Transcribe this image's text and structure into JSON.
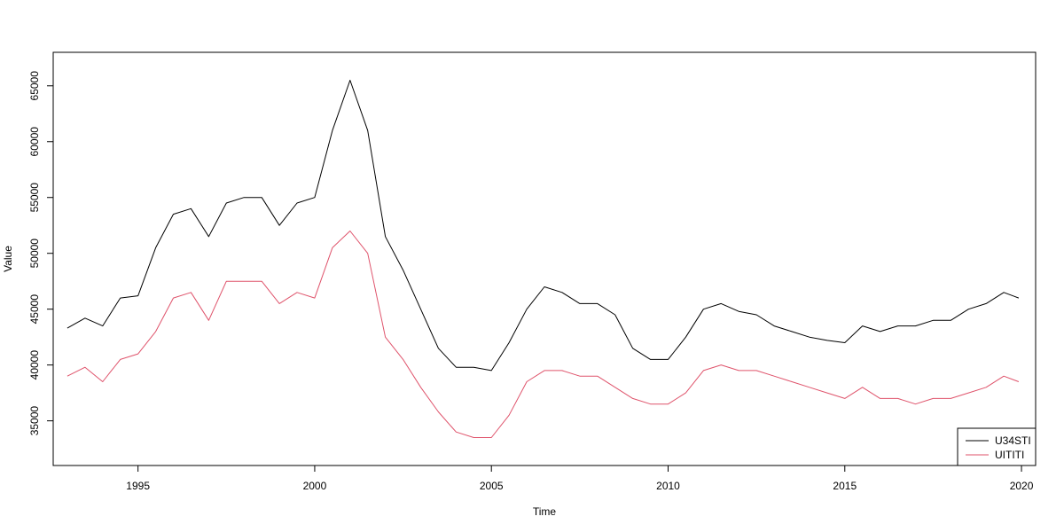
{
  "chart_data": {
    "type": "line",
    "title": "",
    "xlabel": "Time",
    "ylabel": "Value",
    "xlim": [
      1992.6,
      2020.4
    ],
    "ylim": [
      31000,
      68000
    ],
    "x_ticks": [
      1995,
      2000,
      2005,
      2010,
      2015,
      2020
    ],
    "x_tick_labels": [
      "1995",
      "2000",
      "2005",
      "2010",
      "2015",
      "2020"
    ],
    "y_ticks": [
      35000,
      40000,
      45000,
      50000,
      55000,
      60000,
      65000
    ],
    "y_tick_labels": [
      "35000",
      "40000",
      "45000",
      "50000",
      "55000",
      "60000",
      "65000"
    ],
    "grid": false,
    "legend_position": "bottom-right",
    "series": [
      {
        "name": "U34STI",
        "color": "#000000",
        "x": [
          1993.0,
          1993.5,
          1994.0,
          1994.5,
          1995.0,
          1995.5,
          1996.0,
          1996.5,
          1997.0,
          1997.5,
          1998.0,
          1998.5,
          1999.0,
          1999.5,
          2000.0,
          2000.5,
          2001.0,
          2001.5,
          2002.0,
          2002.5,
          2003.0,
          2003.5,
          2004.0,
          2004.5,
          2005.0,
          2005.5,
          2006.0,
          2006.5,
          2007.0,
          2007.5,
          2008.0,
          2008.5,
          2009.0,
          2009.5,
          2010.0,
          2010.5,
          2011.0,
          2011.5,
          2012.0,
          2012.5,
          2013.0,
          2013.5,
          2014.0,
          2014.5,
          2015.0,
          2015.5,
          2016.0,
          2016.5,
          2017.0,
          2017.5,
          2018.0,
          2018.5,
          2019.0,
          2019.5,
          2019.92
        ],
        "values": [
          43300,
          44200,
          43500,
          46000,
          46200,
          50500,
          53500,
          54000,
          51500,
          54500,
          55000,
          55000,
          52500,
          54500,
          55000,
          61000,
          65500,
          61000,
          51500,
          48500,
          45000,
          41500,
          39800,
          39800,
          39500,
          42000,
          45000,
          47000,
          46500,
          45500,
          45500,
          44500,
          41500,
          40500,
          40500,
          42500,
          45000,
          45500,
          44800,
          44500,
          43500,
          43000,
          42500,
          42200,
          42000,
          43500,
          43000,
          43500,
          43500,
          44000,
          44000,
          45000,
          45500,
          46500,
          46000
        ]
      },
      {
        "name": "UITITI",
        "color": "#DF536B",
        "x": [
          1993.0,
          1993.5,
          1994.0,
          1994.5,
          1995.0,
          1995.5,
          1996.0,
          1996.5,
          1997.0,
          1997.5,
          1998.0,
          1998.5,
          1999.0,
          1999.5,
          2000.0,
          2000.5,
          2001.0,
          2001.5,
          2002.0,
          2002.5,
          2003.0,
          2003.5,
          2004.0,
          2004.5,
          2005.0,
          2005.5,
          2006.0,
          2006.5,
          2007.0,
          2007.5,
          2008.0,
          2008.5,
          2009.0,
          2009.5,
          2010.0,
          2010.5,
          2011.0,
          2011.5,
          2012.0,
          2012.5,
          2013.0,
          2013.5,
          2014.0,
          2014.5,
          2015.0,
          2015.5,
          2016.0,
          2016.5,
          2017.0,
          2017.5,
          2018.0,
          2018.5,
          2019.0,
          2019.5,
          2019.92
        ],
        "values": [
          39000,
          39800,
          38500,
          40500,
          41000,
          43000,
          46000,
          46500,
          44000,
          47500,
          47500,
          47500,
          45500,
          46500,
          46000,
          50500,
          52000,
          50000,
          42500,
          40500,
          38000,
          35800,
          34000,
          33500,
          33500,
          35500,
          38500,
          39500,
          39500,
          39000,
          39000,
          38000,
          37000,
          36500,
          36500,
          37500,
          39500,
          40000,
          39500,
          39500,
          39000,
          38500,
          38000,
          37500,
          37000,
          38000,
          37000,
          37000,
          36500,
          37000,
          37000,
          37500,
          38000,
          39000,
          38500
        ]
      }
    ]
  }
}
